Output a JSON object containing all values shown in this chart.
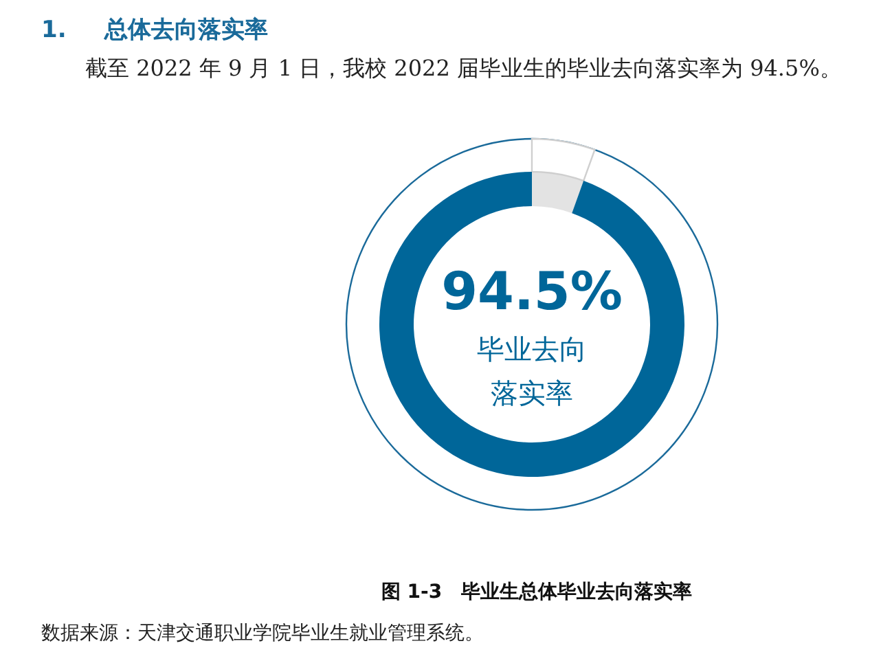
{
  "chart_data": {
    "type": "donut",
    "title": "1. 总体去向落实率",
    "subtitle": "截至 2022 年 9 月 1 日，我校 2022 届毕业生的毕业去向落实率为 94.5%。",
    "categories": [
      null,
      "毕业去向落实率"
    ],
    "values": [
      5.5,
      94.5
    ],
    "colors": [
      "#e3e3e3",
      "#006699"
    ],
    "value_labels": [
      null,
      "94.5%"
    ],
    "annotations": [
      "图 1-3　毕业生总体毕业去向落实率",
      "数据来源：天津交通职业学院毕业生就业管理系统。"
    ]
  }
}
